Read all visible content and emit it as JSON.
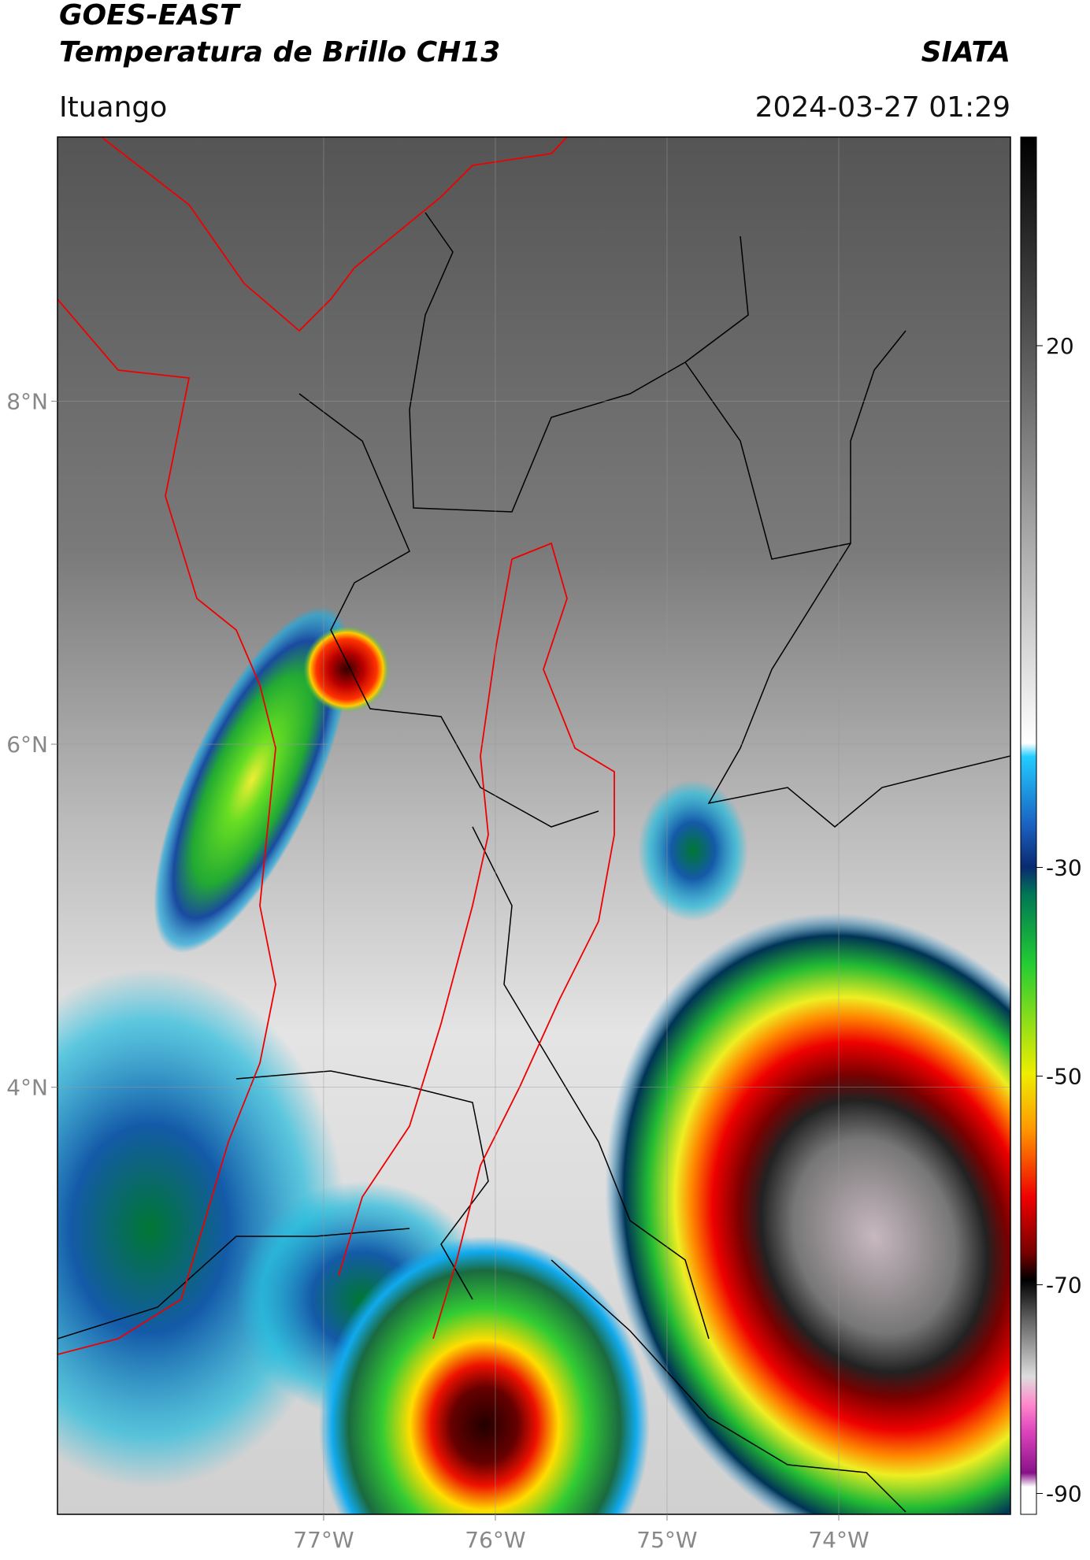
{
  "header": {
    "title": "GOES-EAST",
    "subtitle": "Temperatura de Brillo CH13",
    "source": "SIATA",
    "location": "Ituango",
    "timestamp": "2024-03-27 01:29"
  },
  "map": {
    "lon_range": [
      -78.55,
      -73.0
    ],
    "lat_range": [
      1.51,
      9.54
    ],
    "lon_ticks": [
      {
        "value": -77,
        "label": "77°W"
      },
      {
        "value": -76,
        "label": "76°W"
      },
      {
        "value": -75,
        "label": "75°W"
      },
      {
        "value": -74,
        "label": "74°W"
      }
    ],
    "lat_ticks": [
      {
        "value": 8,
        "label": "8°N"
      },
      {
        "value": 6,
        "label": "6°N"
      },
      {
        "value": 4,
        "label": "4°N"
      }
    ],
    "grid": true
  },
  "colorbar": {
    "lim": [
      -92,
      40
    ],
    "ticks": [
      20,
      -30,
      -50,
      -70,
      -90
    ]
  }
}
